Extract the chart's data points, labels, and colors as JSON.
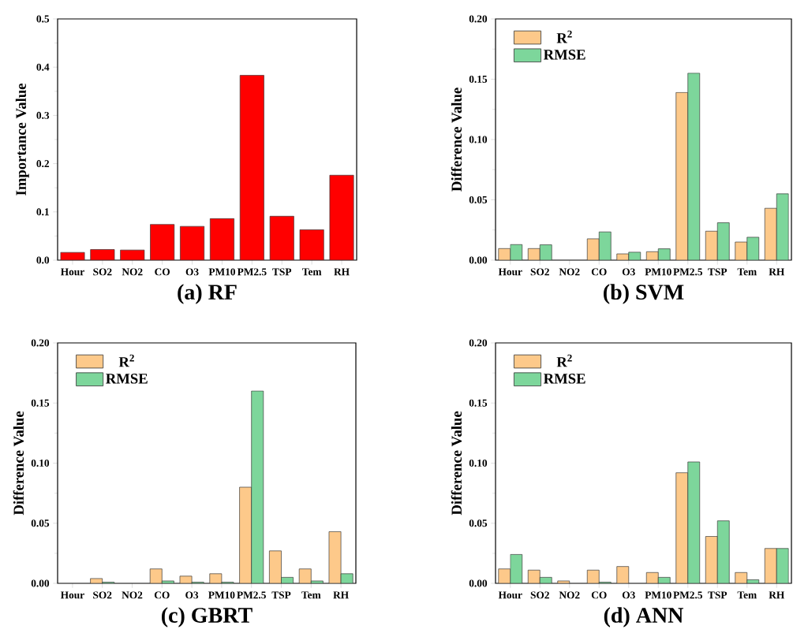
{
  "chart_data": [
    {
      "type": "bar",
      "title": "(a) RF",
      "ylabel": "Importance Value",
      "categories": [
        "Hour",
        "SO2",
        "NO2",
        "CO",
        "O3",
        "PM10",
        "PM2.5",
        "TSP",
        "Tem",
        "RH"
      ],
      "series": [
        {
          "color": "#ff0000",
          "values": [
            0.016,
            0.022,
            0.021,
            0.074,
            0.07,
            0.086,
            0.383,
            0.091,
            0.063,
            0.176
          ]
        }
      ],
      "ylim": [
        0,
        0.5
      ],
      "yticks": [
        {
          "value": 0,
          "label": "0.0"
        },
        {
          "value": 0.1,
          "label": "0.1"
        },
        {
          "value": 0.2,
          "label": "0.2"
        },
        {
          "value": 0.3,
          "label": "0.3"
        },
        {
          "value": 0.4,
          "label": "0.4"
        },
        {
          "value": 0.5,
          "label": "0.5"
        }
      ]
    },
    {
      "type": "bar",
      "title": "(b) SVM",
      "ylabel": "Difference Value",
      "categories": [
        "Hour",
        "SO2",
        "NO2",
        "CO",
        "O3",
        "PM10",
        "PM2.5",
        "TSP",
        "Tem",
        "RH"
      ],
      "series": [
        {
          "name": "R$^{2}$",
          "color": "#fdc98a",
          "values": [
            0.0096,
            0.0096,
            null,
            0.0177,
            0.0052,
            0.007,
            0.139,
            0.024,
            0.015,
            0.043
          ]
        },
        {
          "name": "RMSE",
          "color": "#7dd69b",
          "values": [
            0.0129,
            0.0127,
            null,
            0.0234,
            0.0066,
            0.0094,
            0.155,
            0.031,
            0.019,
            0.055
          ]
        }
      ],
      "ylim": [
        0,
        0.2
      ],
      "yticks": [
        {
          "value": 0,
          "label": "0.00"
        },
        {
          "value": 0.05,
          "label": "0.05"
        },
        {
          "value": 0.1,
          "label": "0.10"
        },
        {
          "value": 0.15,
          "label": "0.15"
        },
        {
          "value": 0.2,
          "label": "0.20"
        }
      ],
      "legend": "top left"
    },
    {
      "type": "bar",
      "title": "(c) GBRT",
      "ylabel": "Difference Value",
      "categories": [
        "Hour",
        "SO2",
        "NO2",
        "CO",
        "O3",
        "PM10",
        "PM2.5",
        "TSP",
        "Tem",
        "RH"
      ],
      "series": [
        {
          "name": "R$^{2}$",
          "color": "#fdc98a",
          "values": [
            null,
            0.004,
            null,
            0.012,
            0.006,
            0.008,
            0.08,
            0.027,
            0.012,
            0.043
          ]
        },
        {
          "name": "RMSE",
          "color": "#7dd69b",
          "values": [
            null,
            0.001,
            null,
            0.002,
            0.001,
            0.001,
            0.16,
            0.005,
            0.002,
            0.008
          ]
        }
      ],
      "ylim": [
        0,
        0.2
      ],
      "yticks": [
        {
          "value": 0,
          "label": "0.00"
        },
        {
          "value": 0.05,
          "label": "0.05"
        },
        {
          "value": 0.1,
          "label": "0.10"
        },
        {
          "value": 0.15,
          "label": "0.15"
        },
        {
          "value": 0.2,
          "label": "0.20"
        }
      ],
      "legend": "top left"
    },
    {
      "type": "bar",
      "title": "(d) ANN",
      "ylabel": "Difference Value",
      "categories": [
        "Hour",
        "SO2",
        "NO2",
        "CO",
        "O3",
        "PM10",
        "PM2.5",
        "TSP",
        "Tem",
        "RH"
      ],
      "series": [
        {
          "name": "R$^{2}$",
          "color": "#fdc98a",
          "values": [
            0.012,
            0.011,
            0.002,
            0.011,
            0.014,
            0.009,
            0.092,
            0.039,
            0.009,
            0.029
          ]
        },
        {
          "name": "RMSE",
          "color": "#7dd69b",
          "values": [
            0.024,
            0.005,
            null,
            0.001,
            null,
            0.005,
            0.101,
            0.052,
            0.003,
            0.029
          ]
        }
      ],
      "ylim": [
        0,
        0.2
      ],
      "yticks": [
        {
          "value": 0,
          "label": "0.00"
        },
        {
          "value": 0.05,
          "label": "0.05"
        },
        {
          "value": 0.1,
          "label": "0.10"
        },
        {
          "value": 0.15,
          "label": "0.15"
        },
        {
          "value": 0.2,
          "label": "0.20"
        }
      ],
      "legend": "top left"
    }
  ]
}
